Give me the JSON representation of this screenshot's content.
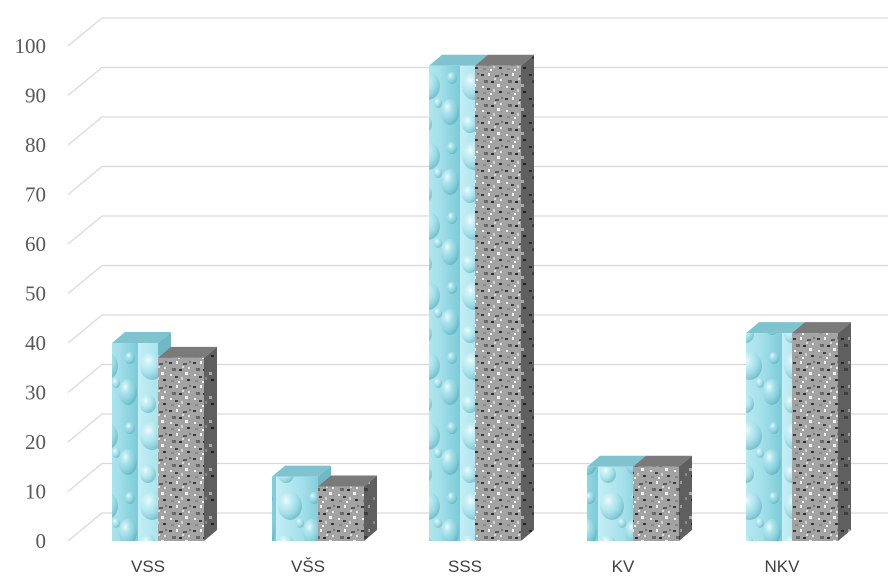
{
  "chart_data": {
    "type": "bar",
    "categories": [
      "VSS",
      "VŠS",
      "SSS",
      "KV",
      "NKV"
    ],
    "series": [
      {
        "values": [
          40,
          13,
          96,
          15,
          42
        ],
        "texture": "water-drops",
        "color": "#9fdde6"
      },
      {
        "values": [
          37,
          11,
          96,
          15,
          42
        ],
        "texture": "granite",
        "color": "#8f8f8f"
      }
    ],
    "ylim": [
      0,
      100
    ],
    "yticks": [
      "0",
      "10",
      "20",
      "30",
      "40",
      "50",
      "60",
      "70",
      "80",
      "90",
      "100"
    ],
    "grid": true,
    "three_d": true,
    "legend": "none"
  }
}
